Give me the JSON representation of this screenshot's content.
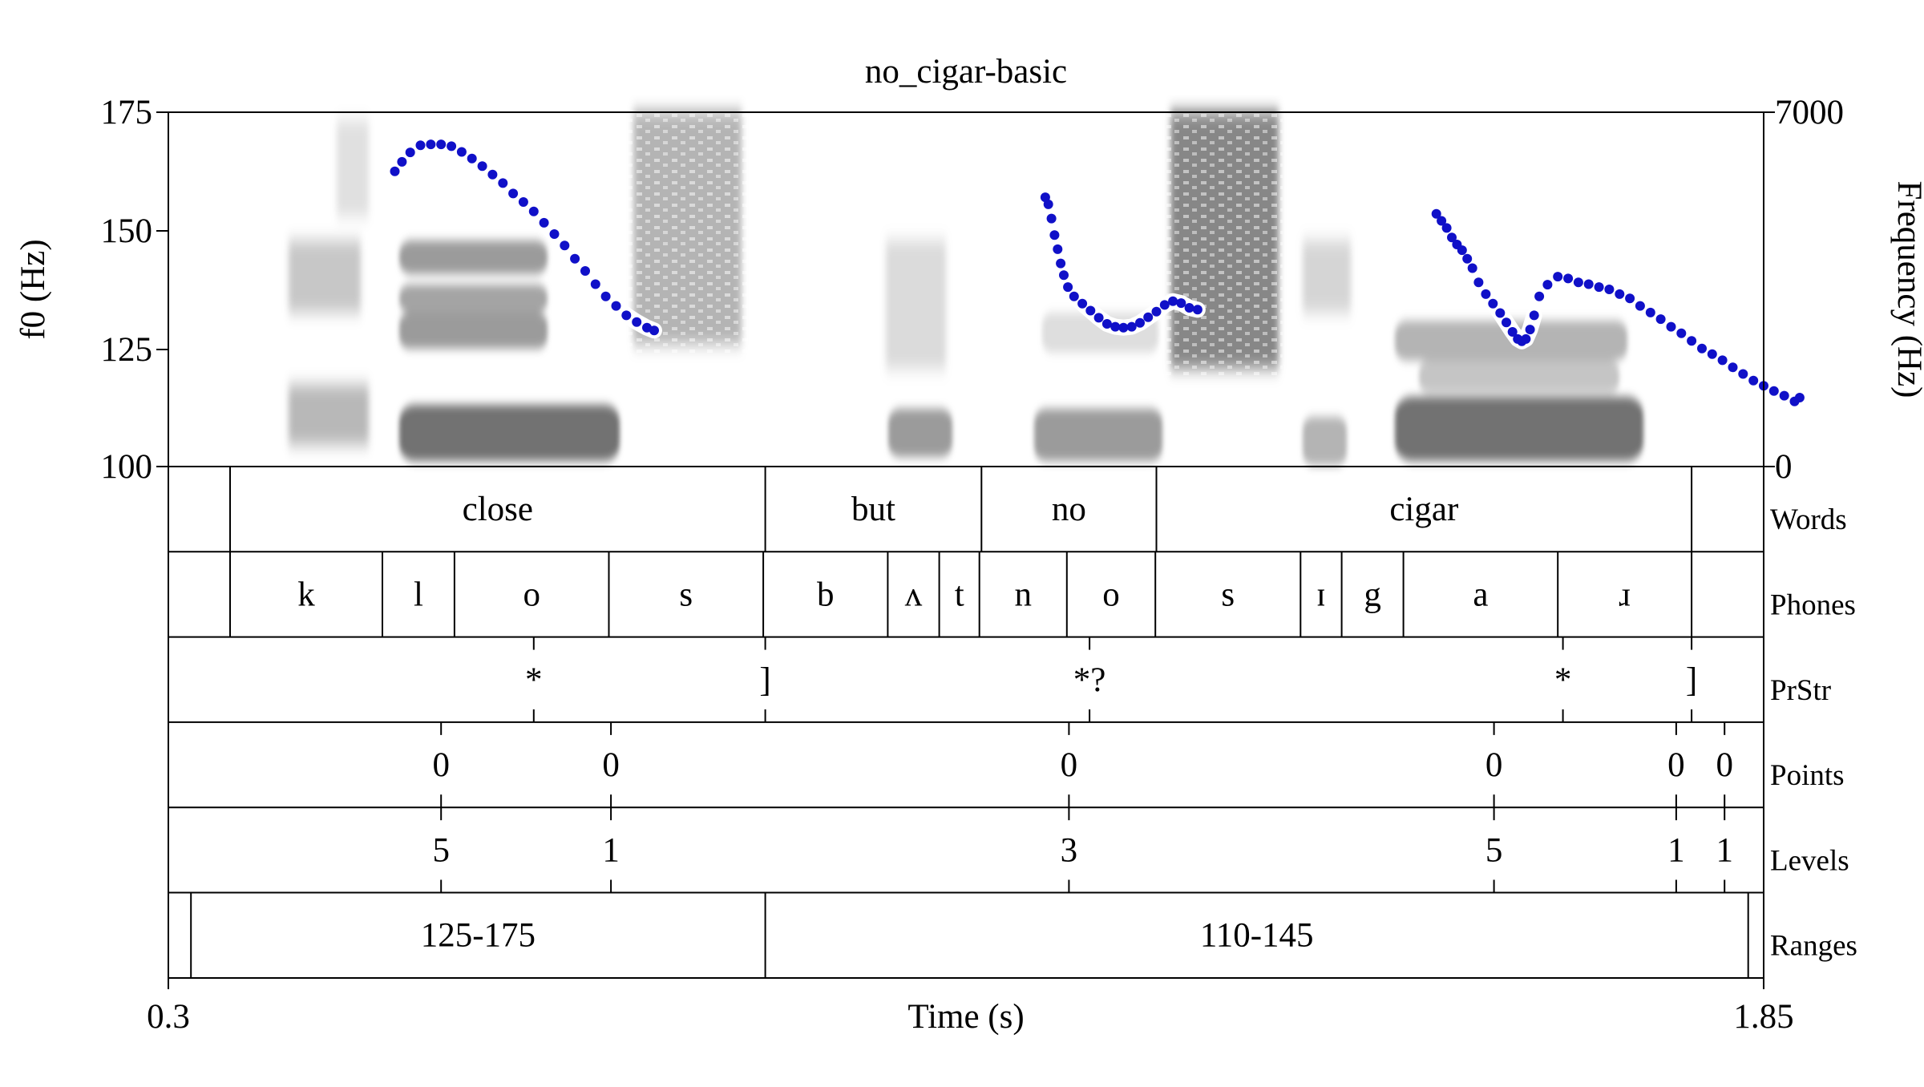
{
  "chart_data": {
    "type": "scatter",
    "title": "no_cigar-basic",
    "xlabel": "Time (s)",
    "ylabel_left": "f0 (Hz)",
    "ylabel_right": "Frequency (Hz)",
    "xlim": [
      0.3,
      1.85
    ],
    "ylim_left": [
      100,
      175
    ],
    "ylim_right": [
      0,
      7000
    ],
    "x_tick_labels": [
      "0.3",
      "1.85"
    ],
    "y_left_ticks": [
      "175",
      "150",
      "125",
      "100"
    ],
    "y_right_ticks": [
      "7000",
      "0"
    ],
    "series": [
      {
        "color": "#1010c8",
        "segments": [
          {
            "x": [
              0.52,
              0.527,
              0.535,
              0.545,
              0.555,
              0.565,
              0.575,
              0.585,
              0.595,
              0.605,
              0.615,
              0.625,
              0.635,
              0.645,
              0.655,
              0.665,
              0.675,
              0.685,
              0.695,
              0.705,
              0.715,
              0.725
            ],
            "y": [
              162.5,
              164.5,
              166.5,
              168,
              168.2,
              168.2,
              167.8,
              166.6,
              165.2,
              163.6,
              161.8,
              160,
              157.8,
              156,
              154,
              151.6,
              149.2,
              146.8,
              144,
              141.4,
              138.6,
              136
            ]
          },
          {
            "x": [
              0.735,
              0.745,
              0.755,
              0.765,
              0.772
            ],
            "y": [
              134,
              132,
              130.6,
              129.4,
              128.8
            ]
          },
          {
            "x": [
              1.152,
              1.155,
              1.158,
              1.161,
              1.164,
              1.167,
              1.17,
              1.174,
              1.18,
              1.188,
              1.196,
              1.204,
              1.212,
              1.22,
              1.228,
              1.236,
              1.244,
              1.252,
              1.26,
              1.268,
              1.276,
              1.284,
              1.292,
              1.3
            ],
            "y": [
              157,
              155.5,
              152.5,
              149,
              146,
              143,
              140.5,
              138,
              136,
              134.5,
              133,
              131.5,
              130.2,
              129.6,
              129.4,
              129.6,
              130.4,
              131.6,
              132.8,
              134.2,
              135,
              134.6,
              133.6,
              133.2
            ]
          },
          {
            "x": [
              1.532,
              1.537,
              1.542,
              1.547,
              1.552,
              1.557,
              1.562,
              1.567,
              1.573,
              1.58,
              1.587,
              1.594,
              1.6,
              1.606,
              1.611,
              1.615,
              1.619,
              1.623,
              1.627
            ],
            "y": [
              153.5,
              152,
              150.5,
              148.5,
              147,
              145.8,
              144,
              142,
              139,
              136.5,
              134.5,
              132.5,
              130.5,
              128.5,
              127,
              126.5,
              127,
              129,
              132
            ]
          },
          {
            "x": [
              1.632,
              1.64,
              1.65,
              1.66,
              1.67,
              1.68,
              1.69,
              1.7,
              1.71,
              1.72,
              1.73,
              1.74,
              1.75,
              1.76,
              1.77,
              1.78,
              1.79,
              1.8,
              1.81,
              1.82,
              1.83,
              1.84,
              1.85,
              1.86,
              1.87,
              1.88,
              1.885
            ],
            "y": [
              136,
              138.5,
              140.2,
              139.8,
              139,
              138.6,
              138,
              137.5,
              136.5,
              135.6,
              134,
              132.6,
              131.2,
              129.6,
              128.2,
              126.6,
              125,
              123.8,
              122.5,
              121,
              119.6,
              118.2,
              117.1,
              116,
              115,
              113.8,
              114.6
            ]
          }
        ]
      }
    ],
    "tiers": [
      {
        "name": "Words",
        "kind": "interval",
        "bounds": [
          0.36,
          0.88,
          1.09,
          1.26,
          1.78
        ],
        "labels": [
          "close",
          "but",
          "no",
          "cigar"
        ]
      },
      {
        "name": "Phones",
        "kind": "interval",
        "bounds": [
          0.36,
          0.508,
          0.578,
          0.728,
          0.878,
          0.999,
          1.049,
          1.088,
          1.173,
          1.259,
          1.4,
          1.44,
          1.5,
          1.65,
          1.78
        ],
        "labels": [
          "k",
          "l",
          "o",
          "s",
          "b",
          "ʌ",
          "t",
          "n",
          "o",
          "s",
          "ɪ",
          "g",
          "a",
          "ɹ"
        ]
      },
      {
        "name": "PrStr",
        "kind": "point",
        "points": [
          {
            "t": 0.655,
            "label": "*"
          },
          {
            "t": 0.88,
            "label": "]"
          },
          {
            "t": 1.195,
            "label": "*?"
          },
          {
            "t": 1.655,
            "label": "*"
          },
          {
            "t": 1.78,
            "label": "]"
          }
        ]
      },
      {
        "name": "Points",
        "kind": "point",
        "points": [
          {
            "t": 0.565,
            "label": "0"
          },
          {
            "t": 0.73,
            "label": "0"
          },
          {
            "t": 1.175,
            "label": "0"
          },
          {
            "t": 1.588,
            "label": "0"
          },
          {
            "t": 1.765,
            "label": "0"
          },
          {
            "t": 1.812,
            "label": "0"
          }
        ]
      },
      {
        "name": "Levels",
        "kind": "point",
        "points": [
          {
            "t": 0.565,
            "label": "5"
          },
          {
            "t": 0.73,
            "label": "1"
          },
          {
            "t": 1.175,
            "label": "3"
          },
          {
            "t": 1.588,
            "label": "5"
          },
          {
            "t": 1.765,
            "label": "1"
          },
          {
            "t": 1.812,
            "label": "1"
          }
        ]
      },
      {
        "name": "Ranges",
        "kind": "interval",
        "bounds": [
          0.322,
          0.88,
          1.835
        ],
        "labels": [
          "125-175",
          "110-145"
        ]
      }
    ]
  }
}
